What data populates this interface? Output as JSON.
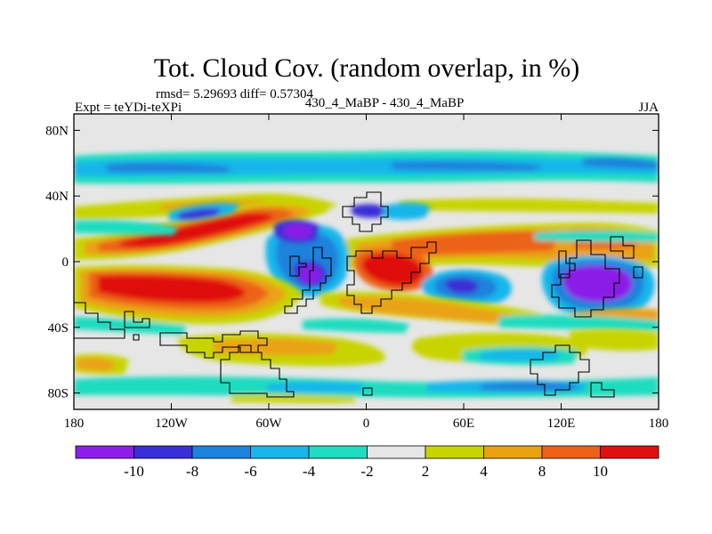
{
  "chart_data": {
    "type": "heatmap",
    "title": "Tot. Cloud Cov. (random overlap, in %)",
    "stats_line": "rmsd= 5.29693 diff= 0.57304",
    "experiment_label": "Expt = teYDi-teXPi",
    "comparison_label": "430_4_MaBP - 430_4_MaBP",
    "season": "JJA",
    "xlabel": "",
    "ylabel": "",
    "x_range": [
      -180,
      180
    ],
    "y_range": [
      -90,
      90
    ],
    "x_ticks": [
      {
        "value": -180,
        "label": "180"
      },
      {
        "value": -120,
        "label": "120W"
      },
      {
        "value": -60,
        "label": "60W"
      },
      {
        "value": 0,
        "label": "0"
      },
      {
        "value": 60,
        "label": "60E"
      },
      {
        "value": 120,
        "label": "120E"
      },
      {
        "value": 180,
        "label": "180"
      }
    ],
    "y_ticks": [
      {
        "value": 80,
        "label": "80N"
      },
      {
        "value": 40,
        "label": "40N"
      },
      {
        "value": 0,
        "label": "0"
      },
      {
        "value": -40,
        "label": "40S"
      },
      {
        "value": -80,
        "label": "80S"
      }
    ],
    "colorbar": {
      "levels": [
        -10,
        -8,
        -6,
        -4,
        -2,
        2,
        4,
        8,
        10
      ],
      "tick_labels": [
        "-10",
        "-8",
        "-6",
        "-4",
        "-2",
        "2",
        "4",
        "8",
        "10"
      ],
      "colors": [
        "#8b1fe8",
        "#3a2fd6",
        "#1c82dc",
        "#19b6ea",
        "#1fdcc0",
        "#e6e6e6",
        "#c8d400",
        "#eaa212",
        "#ec6218",
        "#e01010"
      ]
    },
    "features": [
      {
        "name": "upper-band",
        "lon": [
          -180,
          180
        ],
        "lat": [
          48,
          68
        ],
        "value": -3
      },
      {
        "name": "upper-band-strong",
        "lon": [
          -160,
          -110
        ],
        "lat": [
          55,
          62
        ],
        "value": -5
      },
      {
        "name": "upper-band-strong",
        "lon": [
          0,
          80
        ],
        "lat": [
          52,
          60
        ],
        "value": -5
      },
      {
        "name": "northern-yellow-strip",
        "lon": [
          -150,
          -60
        ],
        "lat": [
          36,
          44
        ],
        "value": 3
      },
      {
        "name": "north-pacific-red-band",
        "lon": [
          -170,
          -90
        ],
        "lat": [
          5,
          35
        ],
        "value": 10.5
      },
      {
        "name": "sahara-red",
        "lon": [
          0,
          50
        ],
        "lat": [
          -20,
          10
        ],
        "value": 10.5
      },
      {
        "name": "indian-ocean-band",
        "lon": [
          20,
          180
        ],
        "lat": [
          -5,
          20
        ],
        "value": 7
      },
      {
        "name": "south-pacific-red-band",
        "lon": [
          -175,
          -70
        ],
        "lat": [
          -40,
          -10
        ],
        "value": 10.5
      },
      {
        "name": "atlantic-blue-eq",
        "lon": [
          -50,
          -20
        ],
        "lat": [
          -25,
          10
        ],
        "value": -9
      },
      {
        "name": "atlantic-blue-north",
        "lon": [
          -60,
          -30
        ],
        "lat": [
          10,
          20
        ],
        "value": -8
      },
      {
        "name": "ocean-blue-south",
        "lon": [
          40,
          80
        ],
        "lat": [
          -25,
          -5
        ],
        "value": -8
      },
      {
        "name": "west-pacific-purple",
        "lon": [
          120,
          160
        ],
        "lat": [
          -30,
          0
        ],
        "value": -10
      },
      {
        "name": "southern-ocean-band",
        "lon": [
          -180,
          180
        ],
        "lat": [
          -75,
          -55
        ],
        "value": -3
      },
      {
        "name": "southern-green",
        "lon": [
          -40,
          60
        ],
        "lat": [
          -60,
          -40
        ],
        "value": 3
      },
      {
        "name": "antarctic-orange",
        "lon": [
          -180,
          -140
        ],
        "lat": [
          -70,
          -60
        ],
        "value": 5
      }
    ]
  }
}
